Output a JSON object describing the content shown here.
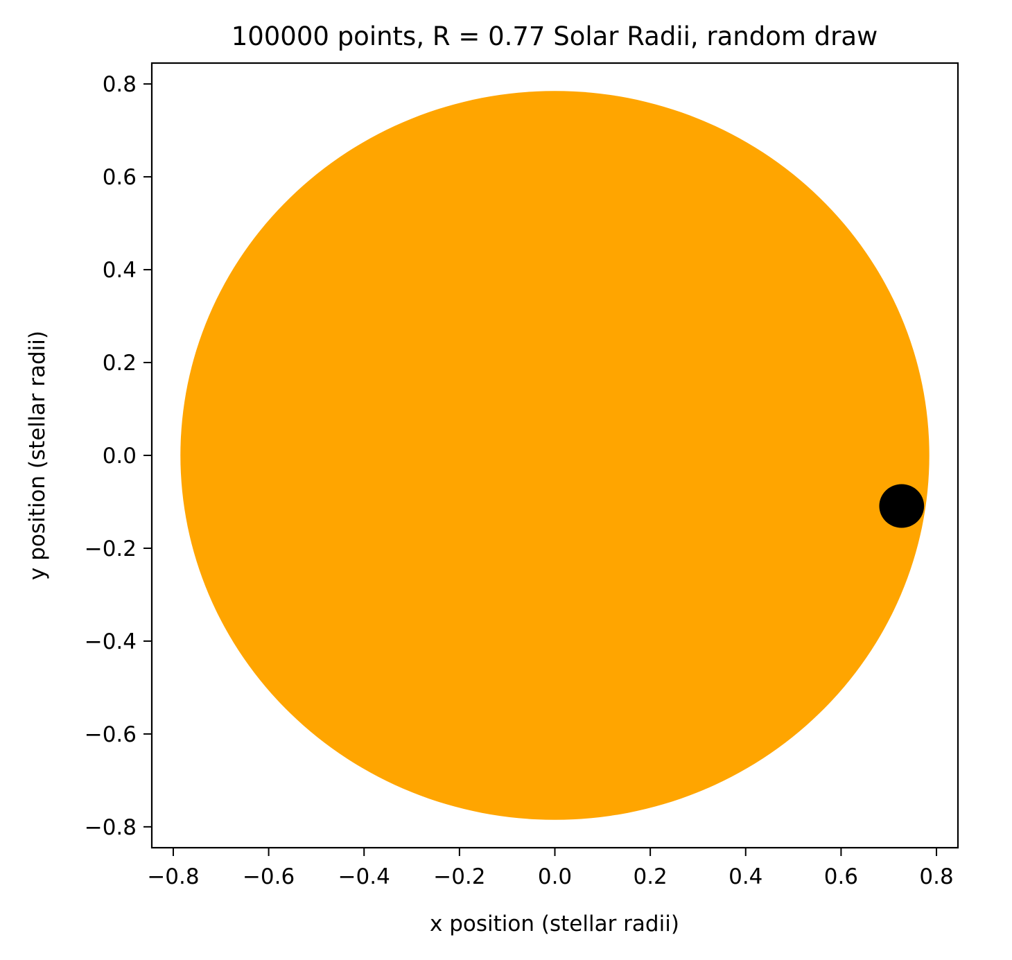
{
  "chart_data": {
    "type": "scatter",
    "title": "100000 points, R = 0.77 Solar Radii, random draw",
    "xlabel": "x position (stellar radii)",
    "ylabel": "y position (stellar radii)",
    "xlim": [
      -0.845,
      0.845
    ],
    "ylim": [
      -0.845,
      0.845
    ],
    "xticks": [
      -0.8,
      -0.6,
      -0.4,
      -0.2,
      0.0,
      0.2,
      0.4,
      0.6,
      0.8
    ],
    "yticks": [
      -0.8,
      -0.6,
      -0.4,
      -0.2,
      0.0,
      0.2,
      0.4,
      0.6,
      0.8
    ],
    "xtick_labels": [
      "−0.8",
      "−0.6",
      "−0.4",
      "−0.2",
      "0.0",
      "0.2",
      "0.4",
      "0.6",
      "0.8"
    ],
    "ytick_labels": [
      "−0.8",
      "−0.6",
      "−0.4",
      "−0.2",
      "0.0",
      "0.2",
      "0.4",
      "0.6",
      "0.8"
    ],
    "grid": false,
    "series": [
      {
        "role": "star",
        "color": "#ffa500",
        "n_points": 100000,
        "shape": "filled-disk",
        "center": [
          0.0,
          0.0
        ],
        "radius": 0.785
      },
      {
        "role": "planet",
        "color": "#000000",
        "shape": "filled-disk",
        "center": [
          0.727,
          -0.109
        ],
        "radius": 0.047
      }
    ]
  }
}
